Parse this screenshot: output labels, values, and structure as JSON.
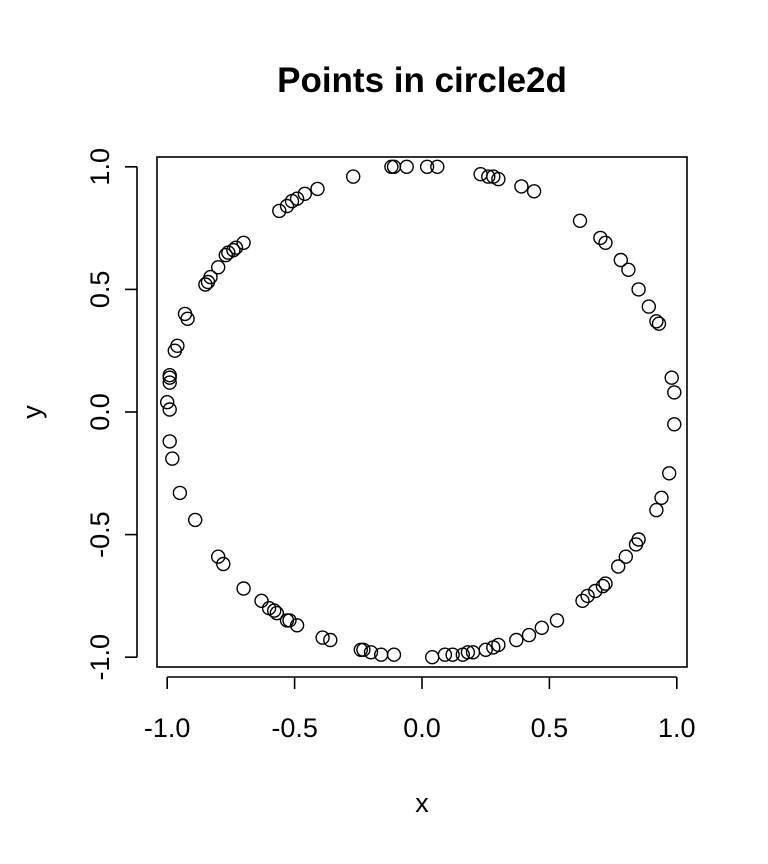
{
  "chart_data": {
    "type": "scatter",
    "title": "Points in circle2d",
    "xlabel": "x",
    "ylabel": "y",
    "xlim": [
      -1.04,
      1.04
    ],
    "ylim": [
      -1.04,
      1.04
    ],
    "x_ticks": [
      -1.0,
      -0.5,
      0.0,
      0.5,
      1.0
    ],
    "x_tick_labels": [
      "-1.0",
      "-0.5",
      "0.0",
      "0.5",
      "1.0"
    ],
    "y_ticks": [
      -1.0,
      -0.5,
      0.0,
      0.5,
      1.0
    ],
    "y_tick_labels": [
      "-1.0",
      "-0.5",
      "0.0",
      "0.5",
      "1.0"
    ],
    "grid": false,
    "marker": "open-circle",
    "series": [
      {
        "name": "points",
        "x": [
          -0.27,
          -0.12,
          -0.11,
          -0.06,
          0.02,
          0.06,
          0.23,
          0.26,
          0.28,
          0.3,
          0.39,
          0.44,
          0.62,
          0.7,
          0.72,
          0.78,
          0.81,
          0.85,
          0.89,
          0.92,
          0.93,
          0.98,
          0.99,
          0.99,
          0.97,
          0.94,
          0.92,
          0.85,
          0.84,
          0.8,
          0.77,
          0.72,
          0.71,
          0.68,
          0.65,
          0.63,
          0.53,
          0.47,
          0.42,
          0.37,
          0.3,
          0.28,
          0.25,
          0.2,
          0.18,
          0.16,
          0.12,
          0.09,
          0.04,
          -0.11,
          -0.16,
          -0.2,
          -0.23,
          -0.24,
          -0.36,
          -0.39,
          -0.49,
          -0.52,
          -0.53,
          -0.57,
          -0.58,
          -0.6,
          -0.63,
          -0.7,
          -0.78,
          -0.8,
          -0.89,
          -0.95,
          -0.98,
          -0.99,
          -0.99,
          -1.0,
          -0.99,
          -0.99,
          -0.99,
          -0.97,
          -0.96,
          -0.92,
          -0.93,
          -0.85,
          -0.84,
          -0.83,
          -0.8,
          -0.77,
          -0.76,
          -0.74,
          -0.73,
          -0.7,
          -0.56,
          -0.53,
          -0.51,
          -0.49,
          -0.46,
          -0.41
        ],
        "y": [
          0.96,
          1.0,
          1.0,
          1.0,
          1.0,
          1.0,
          0.97,
          0.96,
          0.96,
          0.95,
          0.92,
          0.9,
          0.78,
          0.71,
          0.69,
          0.62,
          0.58,
          0.5,
          0.43,
          0.37,
          0.36,
          0.14,
          0.08,
          -0.05,
          -0.25,
          -0.35,
          -0.4,
          -0.52,
          -0.54,
          -0.59,
          -0.63,
          -0.7,
          -0.71,
          -0.73,
          -0.75,
          -0.77,
          -0.85,
          -0.88,
          -0.91,
          -0.93,
          -0.95,
          -0.96,
          -0.97,
          -0.98,
          -0.98,
          -0.99,
          -0.99,
          -0.99,
          -1.0,
          -0.99,
          -0.99,
          -0.98,
          -0.97,
          -0.97,
          -0.93,
          -0.92,
          -0.87,
          -0.85,
          -0.85,
          -0.82,
          -0.81,
          -0.8,
          -0.77,
          -0.72,
          -0.62,
          -0.59,
          -0.44,
          -0.33,
          -0.19,
          -0.12,
          0.01,
          0.04,
          0.12,
          0.14,
          0.15,
          0.25,
          0.27,
          0.38,
          0.4,
          0.52,
          0.53,
          0.55,
          0.59,
          0.64,
          0.65,
          0.66,
          0.67,
          0.69,
          0.82,
          0.84,
          0.86,
          0.87,
          0.89,
          0.91
        ]
      }
    ]
  }
}
